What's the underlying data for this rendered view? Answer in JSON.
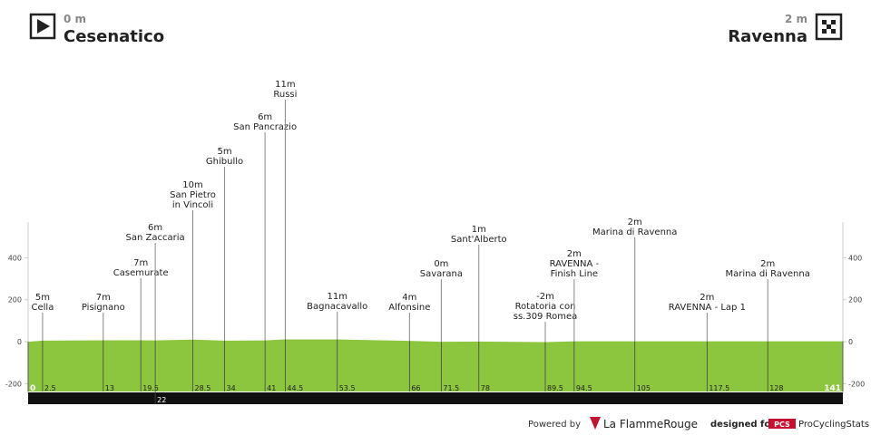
{
  "chart_data": {
    "type": "profile",
    "x": [
      0,
      2.5,
      13,
      19.5,
      22,
      28.5,
      34,
      41,
      44.5,
      53.5,
      66,
      71.5,
      78,
      89.5,
      94.5,
      105,
      117.5,
      128,
      141
    ],
    "values": [
      0,
      5,
      7,
      7,
      6,
      10,
      5,
      6,
      11,
      11,
      4,
      0,
      1,
      -2,
      2,
      2,
      2,
      2,
      2
    ],
    "value_labels": [
      "0 m",
      "5m",
      "7m",
      "7m",
      "6m",
      "10m",
      "5m",
      "6m",
      "11m",
      "11m",
      "4m",
      "0m",
      "1m",
      "-2m",
      "2m",
      "2m",
      "2m",
      "2m",
      "2 m"
    ],
    "names": [
      "Cesenatico",
      [
        "Cella"
      ],
      [
        "Pisignano"
      ],
      [
        "Casemurate"
      ],
      [
        "San Zaccaria"
      ],
      [
        "San Pietro",
        "in Vincoli"
      ],
      [
        "Ghibullo"
      ],
      [
        "San Pancrazio"
      ],
      [
        "Russi"
      ],
      [
        "Bagnacavallo"
      ],
      [
        "Alfonsine"
      ],
      [
        "Savarana"
      ],
      [
        "Sant'Alberto"
      ],
      [
        "Rotatoria con",
        "ss.309 Romea"
      ],
      [
        "RAVENNA -",
        "Finish Line"
      ],
      [
        "Marina di Ravenna"
      ],
      [
        "RAVENNA - Lap 1"
      ],
      [
        "Marina di Ravenna"
      ],
      "Ravenna"
    ],
    "color": "#8cc63f",
    "ylim": [
      -250,
      570
    ],
    "yticks": [
      -200,
      0,
      200,
      400
    ]
  },
  "footer": {
    "powered_by": "Powered by",
    "brand": "La FlammeRouge",
    "designed_for": "designed for",
    "pcs_logo": "PCS",
    "pcs": "ProCyclingStats"
  }
}
